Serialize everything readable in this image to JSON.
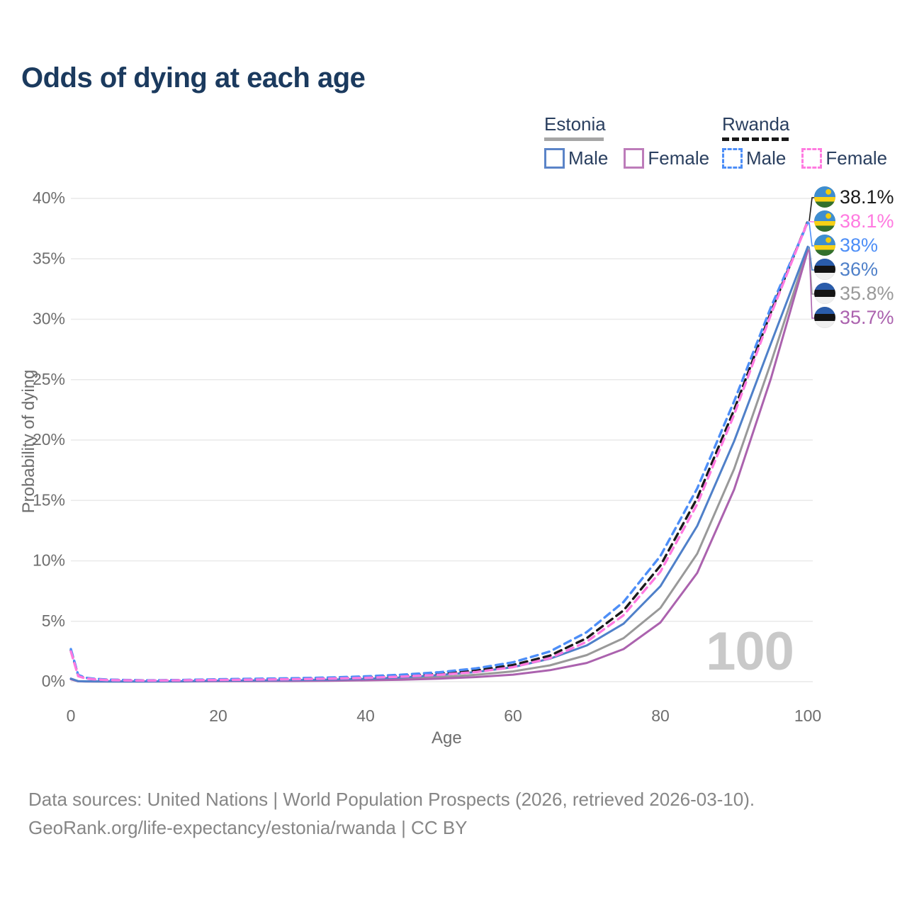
{
  "title": "Odds of dying at each age",
  "watermark_age": "100",
  "legend": {
    "groups": [
      {
        "label": "Estonia",
        "line_style": "solid",
        "underline_color": "#a6a6a6",
        "items": [
          {
            "label": "Male",
            "color": "#5b84c8"
          },
          {
            "label": "Female",
            "color": "#bd7cba"
          }
        ]
      },
      {
        "label": "Rwanda",
        "line_style": "dashed",
        "underline_color": "#1a1a1a",
        "items": [
          {
            "label": "Male",
            "color": "#4d8ef7"
          },
          {
            "label": "Female",
            "color": "#ff7ae0"
          }
        ]
      }
    ]
  },
  "footer": {
    "line1": "Data sources: United Nations | World Population Prospects (2026, retrieved 2026-03-10).",
    "line2": "GeoRank.org/life-expectancy/estonia/rwanda | CC BY"
  },
  "chart_data": {
    "type": "line",
    "title": "Odds of dying at each age",
    "xlabel": "Age",
    "ylabel": "Probability of dying",
    "xlim": [
      0,
      100
    ],
    "ylim": [
      0,
      40
    ],
    "grid": "horizontal",
    "legend_position": "top-right",
    "x_ticks": [
      0,
      20,
      40,
      60,
      80,
      100
    ],
    "y_ticks": [
      {
        "v": 0,
        "label": "0%"
      },
      {
        "v": 5,
        "label": "5%"
      },
      {
        "v": 10,
        "label": "10%"
      },
      {
        "v": 15,
        "label": "15%"
      },
      {
        "v": 20,
        "label": "20%"
      },
      {
        "v": 25,
        "label": "25%"
      },
      {
        "v": 30,
        "label": "30%"
      },
      {
        "v": 35,
        "label": "35%"
      },
      {
        "v": 40,
        "label": "40%"
      }
    ],
    "x": [
      0,
      1,
      2,
      3,
      5,
      10,
      15,
      20,
      25,
      30,
      35,
      40,
      45,
      50,
      55,
      60,
      65,
      70,
      75,
      80,
      85,
      90,
      95,
      100
    ],
    "series": [
      {
        "key": "estonia_total",
        "name": "Estonia Total",
        "country": "Estonia",
        "color": "#999999",
        "dash": false,
        "values": [
          0.22,
          0.035,
          0.025,
          0.02,
          0.015,
          0.012,
          0.025,
          0.055,
          0.07,
          0.09,
          0.12,
          0.17,
          0.25,
          0.38,
          0.57,
          0.85,
          1.35,
          2.2,
          3.6,
          6.1,
          10.6,
          17.6,
          26.4,
          35.8
        ]
      },
      {
        "key": "estonia_female",
        "name": "Estonia Female",
        "country": "Estonia",
        "color": "#ab62ae",
        "dash": false,
        "values": [
          0.2,
          0.03,
          0.02,
          0.018,
          0.013,
          0.01,
          0.018,
          0.035,
          0.045,
          0.055,
          0.075,
          0.11,
          0.16,
          0.25,
          0.38,
          0.58,
          0.95,
          1.55,
          2.7,
          4.9,
          9.0,
          15.9,
          25.1,
          35.7
        ]
      },
      {
        "key": "estonia_male",
        "name": "Estonia Male",
        "country": "Estonia",
        "color": "#4f80c9",
        "dash": false,
        "values": [
          0.25,
          0.04,
          0.03,
          0.025,
          0.02,
          0.015,
          0.035,
          0.08,
          0.1,
          0.13,
          0.17,
          0.24,
          0.35,
          0.55,
          0.8,
          1.2,
          1.9,
          3.0,
          4.8,
          7.9,
          12.9,
          19.9,
          28.0,
          36.0
        ]
      },
      {
        "key": "rwanda_total",
        "name": "Rwanda Total",
        "country": "Rwanda",
        "color": "#1a1a1a",
        "dash": true,
        "values": [
          2.6,
          0.5,
          0.3,
          0.22,
          0.15,
          0.1,
          0.12,
          0.17,
          0.2,
          0.24,
          0.29,
          0.37,
          0.49,
          0.66,
          0.93,
          1.38,
          2.15,
          3.6,
          5.9,
          9.6,
          15.2,
          22.5,
          30.6,
          38.1
        ]
      },
      {
        "key": "rwanda_male",
        "name": "Rwanda Male",
        "country": "Rwanda",
        "color": "#4d8ef7",
        "dash": true,
        "values": [
          2.7,
          0.55,
          0.33,
          0.25,
          0.17,
          0.11,
          0.14,
          0.2,
          0.24,
          0.28,
          0.34,
          0.44,
          0.58,
          0.78,
          1.1,
          1.6,
          2.5,
          4.1,
          6.6,
          10.4,
          16.0,
          23.2,
          31.0,
          38.0
        ]
      },
      {
        "key": "rwanda_female",
        "name": "Rwanda Female",
        "country": "Rwanda",
        "color": "#ff7ae0",
        "dash": true,
        "values": [
          2.5,
          0.45,
          0.27,
          0.2,
          0.13,
          0.09,
          0.11,
          0.14,
          0.17,
          0.2,
          0.25,
          0.31,
          0.42,
          0.57,
          0.8,
          1.2,
          1.95,
          3.3,
          5.5,
          9.1,
          14.7,
          22.1,
          30.4,
          38.1
        ]
      }
    ],
    "end_labels": [
      {
        "series": "rwanda_total",
        "flag": "rwanda",
        "text": "38.1%",
        "color": "#1a1a1a"
      },
      {
        "series": "rwanda_female",
        "flag": "rwanda",
        "text": "38.1%",
        "color": "#ff7ae0"
      },
      {
        "series": "rwanda_male",
        "flag": "rwanda",
        "text": "38%",
        "color": "#4d8ef7"
      },
      {
        "series": "estonia_male",
        "flag": "estonia",
        "text": "36%",
        "color": "#4f80c9"
      },
      {
        "series": "estonia_total",
        "flag": "estonia",
        "text": "35.8%",
        "color": "#999999"
      },
      {
        "series": "estonia_female",
        "flag": "estonia",
        "text": "35.7%",
        "color": "#ab62ae"
      }
    ]
  }
}
